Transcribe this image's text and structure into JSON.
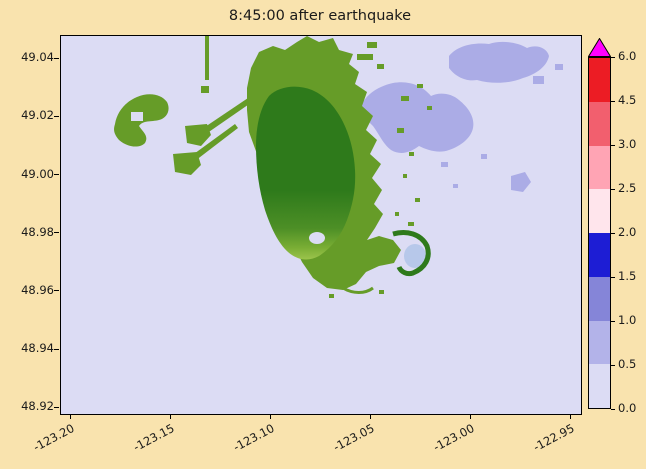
{
  "title": "8:45:00 after earthquake",
  "colors": {
    "figure-bg": "#f9e3ae",
    "water": "#dcdcf4",
    "shallow-water": "#abace6",
    "bay-water": "#b7c8ea",
    "land": "#669c28",
    "land-dark": "#2e7a1b",
    "land-light": "#9cc44c",
    "spine": "#000000",
    "text": "#1a1a1a",
    "colorbar-over": "#ff00ff"
  },
  "axes": {
    "x_tick_labels": [
      "-123.20",
      "-123.15",
      "-123.10",
      "-123.05",
      "-123.00",
      "-122.95"
    ],
    "y_tick_labels": [
      "49.04",
      "49.02",
      "49.00",
      "48.98",
      "48.96",
      "48.94",
      "48.92"
    ]
  },
  "colorbar": {
    "tick_labels": [
      "0.0",
      "0.5",
      "1.0",
      "1.5",
      "2.0",
      "2.5",
      "3.0",
      "4.5",
      "6.0"
    ],
    "segment_colors": [
      "#dcdcf4",
      "#b3b3e9",
      "#8585d8",
      "#1d1dd4",
      "#ffe5ec",
      "#ffa4b4",
      "#f25f6e",
      "#ec1c24"
    ],
    "extend": "max"
  },
  "chart_data": {
    "type": "heatmap",
    "title": "8:45:00 after earthquake",
    "xlabel": "",
    "ylabel": "",
    "xlim": [
      -123.205,
      -122.945
    ],
    "ylim": [
      48.918,
      49.048
    ],
    "x_ticks": [
      -123.2,
      -123.15,
      -123.1,
      -123.05,
      -123.0,
      -122.95
    ],
    "y_ticks": [
      49.04,
      49.02,
      49.0,
      48.98,
      48.96,
      48.94,
      48.92
    ],
    "grid": false,
    "legend": "none",
    "colorbar_boundaries": [
      0.0,
      0.5,
      1.0,
      1.5,
      2.0,
      2.5,
      3.0,
      4.5,
      6.0
    ],
    "colorbar_colors": [
      "#dcdcf4",
      "#b3b3e9",
      "#8585d8",
      "#1d1dd4",
      "#ffe5ec",
      "#ffa4b4",
      "#f25f6e",
      "#ec1c24"
    ],
    "colorbar_over_color": "#ff00ff",
    "description": "Geographic tsunami-simulation frame: lavender background is water at ~0 surface elevation, purple patches upper-right show water elevated ~0.5-1.0, green shapes are land (dark green interior lowland, olive coast, jetties and an offshore terminal to the lower-left)."
  }
}
